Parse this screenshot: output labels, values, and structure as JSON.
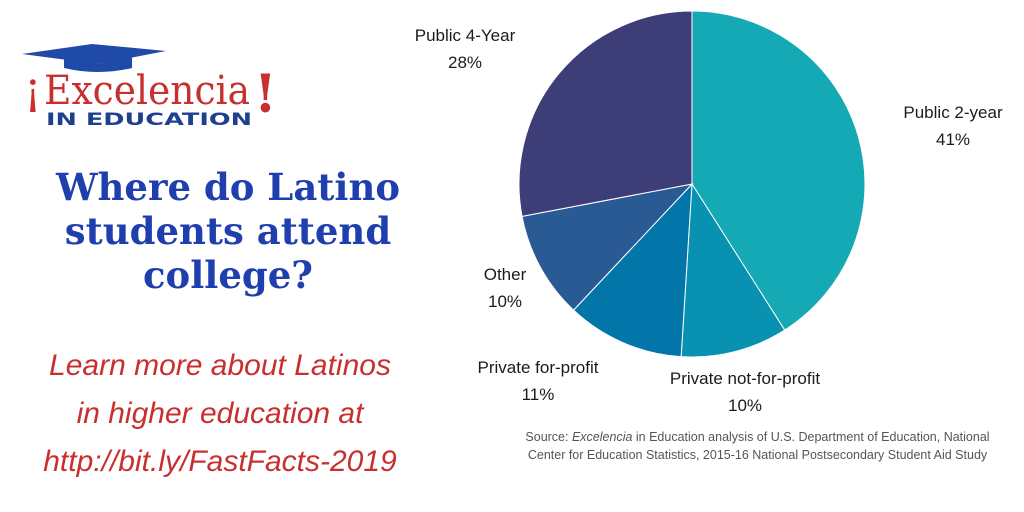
{
  "logo": {
    "name": "Excelencia",
    "exclaim_open": "¡",
    "exclaim_close": "!",
    "tagline": "IN EDUCATION",
    "colors": {
      "cap": "#1f4aa8",
      "name": "#c8302f",
      "tagline": "#1f3f8f"
    }
  },
  "headline": {
    "lines": [
      "Where do Latino",
      "students attend",
      "college?"
    ]
  },
  "learn_more": {
    "lines": [
      "Learn more about Latinos",
      "in higher education at",
      "http://bit.ly/FastFacts-2019"
    ]
  },
  "source": {
    "prefix": "Source: ",
    "emphasis": "Excelencia",
    "rest": " in Education analysis of U.S. Department of Education, National Center for Education Statistics, 2015-16 National Postsecondary Student Aid Study"
  },
  "chart_data": {
    "type": "pie",
    "start_angle_deg": 0,
    "direction": "clockwise",
    "slices": [
      {
        "label": "Public 2-year",
        "value": 41,
        "value_label": "41%",
        "color": "#14a9b4"
      },
      {
        "label": "Private not-for-profit",
        "value": 10,
        "value_label": "10%",
        "color": "#0891b0"
      },
      {
        "label": "Private for-profit",
        "value": 11,
        "value_label": "11%",
        "color": "#0276a8"
      },
      {
        "label": "Other",
        "value": 10,
        "value_label": "10%",
        "color": "#2a5a94"
      },
      {
        "label": "Public 4-Year",
        "value": 28,
        "value_label": "28%",
        "color": "#3d3d78"
      }
    ]
  }
}
